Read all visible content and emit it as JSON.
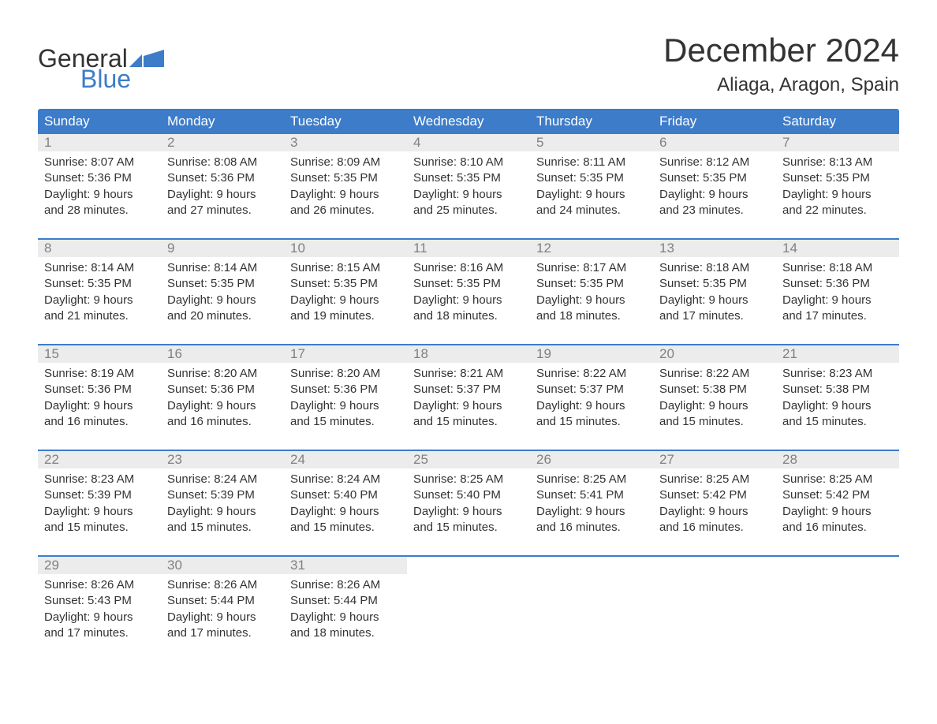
{
  "logo": {
    "word1": "General",
    "word2": "Blue",
    "accent_color": "#3d7cc9",
    "text_color": "#333333"
  },
  "header": {
    "month_title": "December 2024",
    "location": "Aliaga, Aragon, Spain"
  },
  "calendar": {
    "day_headers": [
      "Sunday",
      "Monday",
      "Tuesday",
      "Wednesday",
      "Thursday",
      "Friday",
      "Saturday"
    ],
    "header_bg": "#3d7cc9",
    "header_fg": "#ffffff",
    "row_separator_color": "#3d7cc9",
    "daynum_bg": "#ececec",
    "daynum_color": "#808080",
    "body_text_color": "#333333",
    "background_color": "#ffffff",
    "weeks": [
      [
        {
          "n": "1",
          "sunrise": "Sunrise: 8:07 AM",
          "sunset": "Sunset: 5:36 PM",
          "day1": "Daylight: 9 hours",
          "day2": "and 28 minutes."
        },
        {
          "n": "2",
          "sunrise": "Sunrise: 8:08 AM",
          "sunset": "Sunset: 5:36 PM",
          "day1": "Daylight: 9 hours",
          "day2": "and 27 minutes."
        },
        {
          "n": "3",
          "sunrise": "Sunrise: 8:09 AM",
          "sunset": "Sunset: 5:35 PM",
          "day1": "Daylight: 9 hours",
          "day2": "and 26 minutes."
        },
        {
          "n": "4",
          "sunrise": "Sunrise: 8:10 AM",
          "sunset": "Sunset: 5:35 PM",
          "day1": "Daylight: 9 hours",
          "day2": "and 25 minutes."
        },
        {
          "n": "5",
          "sunrise": "Sunrise: 8:11 AM",
          "sunset": "Sunset: 5:35 PM",
          "day1": "Daylight: 9 hours",
          "day2": "and 24 minutes."
        },
        {
          "n": "6",
          "sunrise": "Sunrise: 8:12 AM",
          "sunset": "Sunset: 5:35 PM",
          "day1": "Daylight: 9 hours",
          "day2": "and 23 minutes."
        },
        {
          "n": "7",
          "sunrise": "Sunrise: 8:13 AM",
          "sunset": "Sunset: 5:35 PM",
          "day1": "Daylight: 9 hours",
          "day2": "and 22 minutes."
        }
      ],
      [
        {
          "n": "8",
          "sunrise": "Sunrise: 8:14 AM",
          "sunset": "Sunset: 5:35 PM",
          "day1": "Daylight: 9 hours",
          "day2": "and 21 minutes."
        },
        {
          "n": "9",
          "sunrise": "Sunrise: 8:14 AM",
          "sunset": "Sunset: 5:35 PM",
          "day1": "Daylight: 9 hours",
          "day2": "and 20 minutes."
        },
        {
          "n": "10",
          "sunrise": "Sunrise: 8:15 AM",
          "sunset": "Sunset: 5:35 PM",
          "day1": "Daylight: 9 hours",
          "day2": "and 19 minutes."
        },
        {
          "n": "11",
          "sunrise": "Sunrise: 8:16 AM",
          "sunset": "Sunset: 5:35 PM",
          "day1": "Daylight: 9 hours",
          "day2": "and 18 minutes."
        },
        {
          "n": "12",
          "sunrise": "Sunrise: 8:17 AM",
          "sunset": "Sunset: 5:35 PM",
          "day1": "Daylight: 9 hours",
          "day2": "and 18 minutes."
        },
        {
          "n": "13",
          "sunrise": "Sunrise: 8:18 AM",
          "sunset": "Sunset: 5:35 PM",
          "day1": "Daylight: 9 hours",
          "day2": "and 17 minutes."
        },
        {
          "n": "14",
          "sunrise": "Sunrise: 8:18 AM",
          "sunset": "Sunset: 5:36 PM",
          "day1": "Daylight: 9 hours",
          "day2": "and 17 minutes."
        }
      ],
      [
        {
          "n": "15",
          "sunrise": "Sunrise: 8:19 AM",
          "sunset": "Sunset: 5:36 PM",
          "day1": "Daylight: 9 hours",
          "day2": "and 16 minutes."
        },
        {
          "n": "16",
          "sunrise": "Sunrise: 8:20 AM",
          "sunset": "Sunset: 5:36 PM",
          "day1": "Daylight: 9 hours",
          "day2": "and 16 minutes."
        },
        {
          "n": "17",
          "sunrise": "Sunrise: 8:20 AM",
          "sunset": "Sunset: 5:36 PM",
          "day1": "Daylight: 9 hours",
          "day2": "and 15 minutes."
        },
        {
          "n": "18",
          "sunrise": "Sunrise: 8:21 AM",
          "sunset": "Sunset: 5:37 PM",
          "day1": "Daylight: 9 hours",
          "day2": "and 15 minutes."
        },
        {
          "n": "19",
          "sunrise": "Sunrise: 8:22 AM",
          "sunset": "Sunset: 5:37 PM",
          "day1": "Daylight: 9 hours",
          "day2": "and 15 minutes."
        },
        {
          "n": "20",
          "sunrise": "Sunrise: 8:22 AM",
          "sunset": "Sunset: 5:38 PM",
          "day1": "Daylight: 9 hours",
          "day2": "and 15 minutes."
        },
        {
          "n": "21",
          "sunrise": "Sunrise: 8:23 AM",
          "sunset": "Sunset: 5:38 PM",
          "day1": "Daylight: 9 hours",
          "day2": "and 15 minutes."
        }
      ],
      [
        {
          "n": "22",
          "sunrise": "Sunrise: 8:23 AM",
          "sunset": "Sunset: 5:39 PM",
          "day1": "Daylight: 9 hours",
          "day2": "and 15 minutes."
        },
        {
          "n": "23",
          "sunrise": "Sunrise: 8:24 AM",
          "sunset": "Sunset: 5:39 PM",
          "day1": "Daylight: 9 hours",
          "day2": "and 15 minutes."
        },
        {
          "n": "24",
          "sunrise": "Sunrise: 8:24 AM",
          "sunset": "Sunset: 5:40 PM",
          "day1": "Daylight: 9 hours",
          "day2": "and 15 minutes."
        },
        {
          "n": "25",
          "sunrise": "Sunrise: 8:25 AM",
          "sunset": "Sunset: 5:40 PM",
          "day1": "Daylight: 9 hours",
          "day2": "and 15 minutes."
        },
        {
          "n": "26",
          "sunrise": "Sunrise: 8:25 AM",
          "sunset": "Sunset: 5:41 PM",
          "day1": "Daylight: 9 hours",
          "day2": "and 16 minutes."
        },
        {
          "n": "27",
          "sunrise": "Sunrise: 8:25 AM",
          "sunset": "Sunset: 5:42 PM",
          "day1": "Daylight: 9 hours",
          "day2": "and 16 minutes."
        },
        {
          "n": "28",
          "sunrise": "Sunrise: 8:25 AM",
          "sunset": "Sunset: 5:42 PM",
          "day1": "Daylight: 9 hours",
          "day2": "and 16 minutes."
        }
      ],
      [
        {
          "n": "29",
          "sunrise": "Sunrise: 8:26 AM",
          "sunset": "Sunset: 5:43 PM",
          "day1": "Daylight: 9 hours",
          "day2": "and 17 minutes."
        },
        {
          "n": "30",
          "sunrise": "Sunrise: 8:26 AM",
          "sunset": "Sunset: 5:44 PM",
          "day1": "Daylight: 9 hours",
          "day2": "and 17 minutes."
        },
        {
          "n": "31",
          "sunrise": "Sunrise: 8:26 AM",
          "sunset": "Sunset: 5:44 PM",
          "day1": "Daylight: 9 hours",
          "day2": "and 18 minutes."
        },
        null,
        null,
        null,
        null
      ]
    ]
  }
}
